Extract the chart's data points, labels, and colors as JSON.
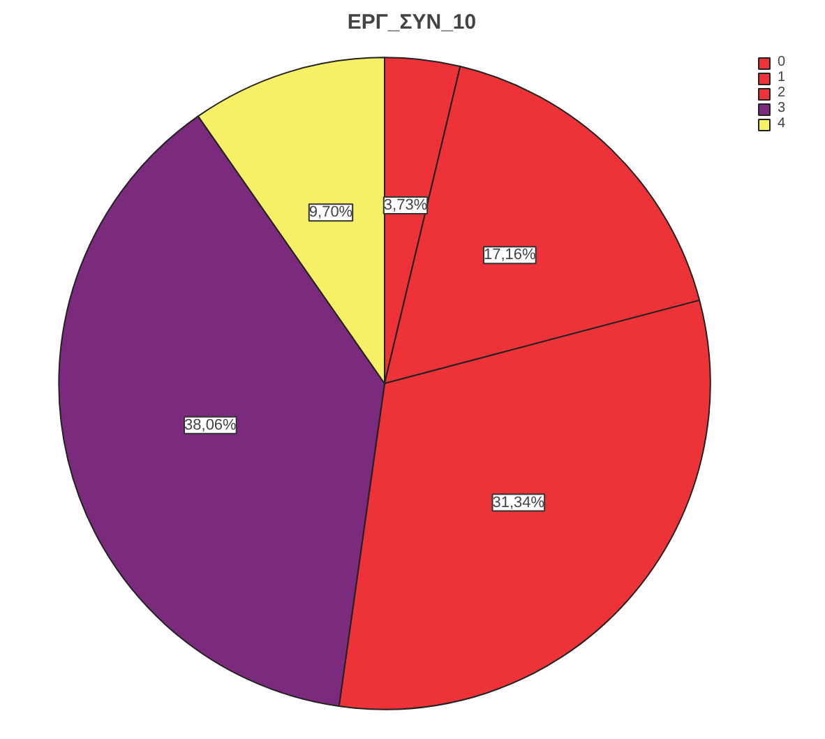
{
  "chart_data": {
    "type": "pie",
    "title": "ΕΡΓ_ΣΥΝ_10",
    "categories": [
      "0",
      "1",
      "2",
      "3",
      "4"
    ],
    "values": [
      3.73,
      17.16,
      31.34,
      38.06,
      9.7
    ],
    "colors": [
      "#ee3338",
      "#ee3338",
      "#ee3338",
      "#7b2a7e",
      "#f5f066"
    ],
    "value_labels": [
      "3,73%",
      "17,16%",
      "31,34%",
      "38,06%",
      "9,70%"
    ],
    "legend": "top right"
  }
}
